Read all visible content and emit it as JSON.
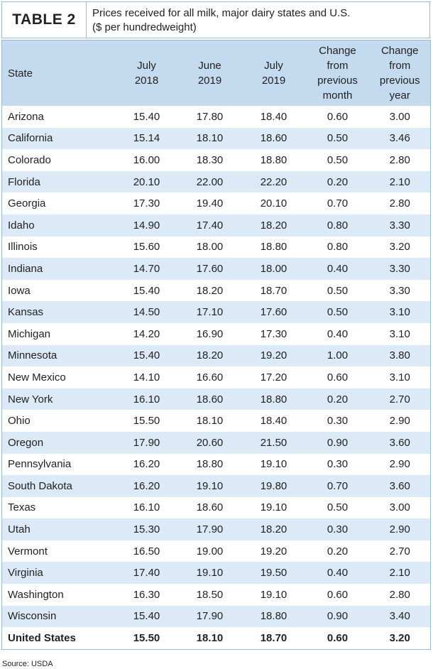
{
  "header": {
    "label": "TABLE 2",
    "title_lines": [
      "Prices received for all milk, major dairy states and U.S.",
      "($ per hundredweight)"
    ]
  },
  "table": {
    "columns": [
      [
        "State"
      ],
      [
        "July",
        "2018"
      ],
      [
        "June",
        "2019"
      ],
      [
        "July",
        "2019"
      ],
      [
        "Change",
        "from",
        "previous",
        "month"
      ],
      [
        "Change",
        "from",
        "previous",
        "year"
      ]
    ],
    "rows": [
      [
        "Arizona",
        "15.40",
        "17.80",
        "18.40",
        "0.60",
        "3.00"
      ],
      [
        "California",
        "15.14",
        "18.10",
        "18.60",
        "0.50",
        "3.46"
      ],
      [
        "Colorado",
        "16.00",
        "18.30",
        "18.80",
        "0.50",
        "2.80"
      ],
      [
        "Florida",
        "20.10",
        "22.00",
        "22.20",
        "0.20",
        "2.10"
      ],
      [
        "Georgia",
        "17.30",
        "19.40",
        "20.10",
        "0.70",
        "2.80"
      ],
      [
        "Idaho",
        "14.90",
        "17.40",
        "18.20",
        "0.80",
        "3.30"
      ],
      [
        "Illinois",
        "15.60",
        "18.00",
        "18.80",
        "0.80",
        "3.20"
      ],
      [
        "Indiana",
        "14.70",
        "17.60",
        "18.00",
        "0.40",
        "3.30"
      ],
      [
        "Iowa",
        "15.40",
        "18.20",
        "18.70",
        "0.50",
        "3.30"
      ],
      [
        "Kansas",
        "14.50",
        "17.10",
        "17.60",
        "0.50",
        "3.10"
      ],
      [
        "Michigan",
        "14.20",
        "16.90",
        "17.30",
        "0.40",
        "3.10"
      ],
      [
        "Minnesota",
        "15.40",
        "18.20",
        "19.20",
        "1.00",
        "3.80"
      ],
      [
        "New Mexico",
        "14.10",
        "16.60",
        "17.20",
        "0.60",
        "3.10"
      ],
      [
        "New York",
        "16.10",
        "18.60",
        "18.80",
        "0.20",
        "2.70"
      ],
      [
        "Ohio",
        "15.50",
        "18.10",
        "18.40",
        "0.30",
        "2.90"
      ],
      [
        "Oregon",
        "17.90",
        "20.60",
        "21.50",
        "0.90",
        "3.60"
      ],
      [
        "Pennsylvania",
        "16.20",
        "18.80",
        "19.10",
        "0.30",
        "2.90"
      ],
      [
        "South Dakota",
        "16.20",
        "19.10",
        "19.80",
        "0.70",
        "3.60"
      ],
      [
        "Texas",
        "16.10",
        "18.60",
        "19.10",
        "0.50",
        "3.00"
      ],
      [
        "Utah",
        "15.30",
        "17.90",
        "18.20",
        "0.30",
        "2.90"
      ],
      [
        "Vermont",
        "16.50",
        "19.00",
        "19.20",
        "0.20",
        "2.70"
      ],
      [
        "Virginia",
        "17.40",
        "19.10",
        "19.50",
        "0.40",
        "2.10"
      ],
      [
        "Washington",
        "16.30",
        "18.50",
        "19.10",
        "0.60",
        "2.80"
      ],
      [
        "Wisconsin",
        "15.40",
        "17.90",
        "18.80",
        "0.90",
        "3.40"
      ]
    ],
    "total_row": [
      "United States",
      "15.50",
      "18.10",
      "18.70",
      "0.60",
      "3.20"
    ]
  },
  "footer": {
    "source": "Source: USDA"
  }
}
